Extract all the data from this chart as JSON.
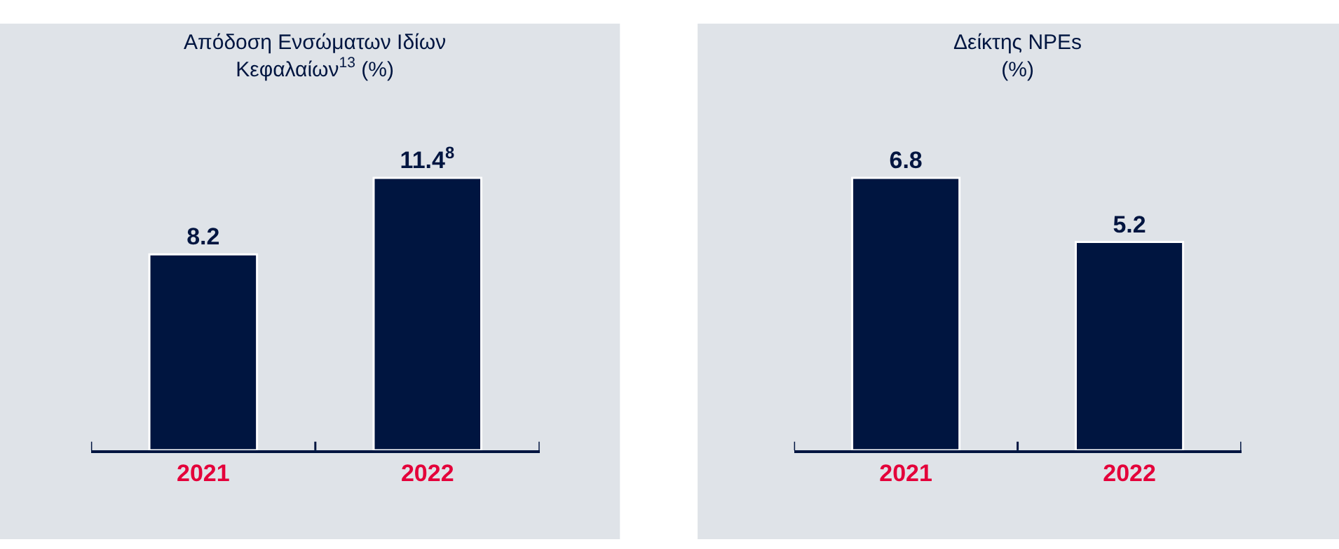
{
  "chart_data": [
    {
      "type": "bar",
      "title": "Απόδοση Ενσώματων Ιδίων\nΚεφαλαίων$^{13}$ (%)",
      "categories": [
        "2021",
        "2022"
      ],
      "values": [
        8.2,
        11.4
      ],
      "value_labels": [
        "8.2",
        "11.4$^{8}$"
      ],
      "color": "#001540"
    },
    {
      "type": "bar",
      "title": "Δείκτης NPEs\n(%)",
      "categories": [
        "2021",
        "2022"
      ],
      "values": [
        6.8,
        5.2
      ],
      "data_labels": true,
      "color": "#001540"
    }
  ]
}
